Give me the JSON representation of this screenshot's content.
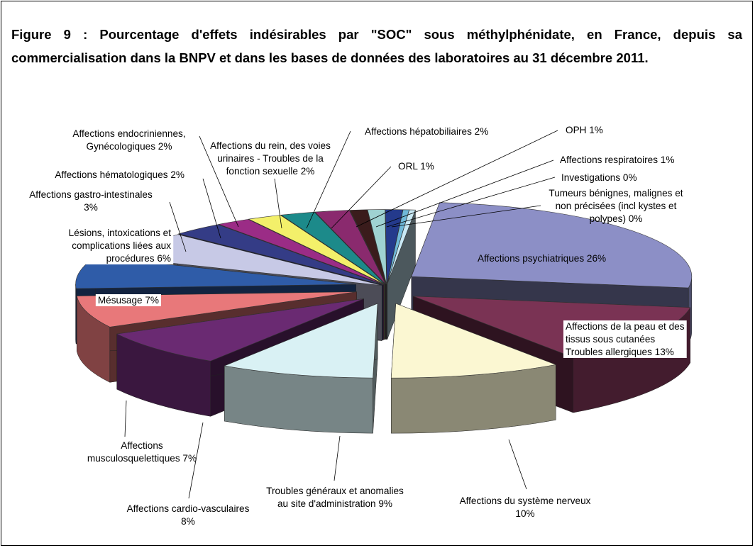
{
  "figure": {
    "title": "Figure 9 : Pourcentage d'effets indésirables par \"SOC\" sous méthylphénidate, en France, depuis sa commercialisation dans la BNPV et dans les bases de données des laboratoires au 31 décembre 2011."
  },
  "chart_data": {
    "type": "pie",
    "style": "3d-exploded",
    "unit": "%",
    "slices": [
      {
        "label": "Affections psychiatriques 26%",
        "category": "Affections psychiatriques",
        "value": 26,
        "color": "#8c8fc6"
      },
      {
        "label": "Affections de la peau et des tissus sous cutanées Troubles allergiques 13%",
        "category": "Affections de la peau et des tissus sous cutanées Troubles allergiques",
        "value": 13,
        "color": "#7a3354"
      },
      {
        "label": "Affections du système nerveux 10%",
        "category": "Affections du système nerveux",
        "value": 10,
        "color": "#fbf7d2"
      },
      {
        "label": "Troubles généraux et anomalies au site d'administration 9%",
        "category": "Troubles généraux et anomalies au site d'administration",
        "value": 9,
        "color": "#d9f1f4"
      },
      {
        "label": "Affections cardio-vasculaires 8%",
        "category": "Affections cardio-vasculaires",
        "value": 8,
        "color": "#6a2a72"
      },
      {
        "label": "Affections musculosquelettiques 7%",
        "category": "Affections musculosquelettiques",
        "value": 7,
        "color": "#e8787a"
      },
      {
        "label": "Mésusage 7%",
        "category": "Mésusage",
        "value": 7,
        "color": "#2f5ca8"
      },
      {
        "label": "Lésions, intoxications et complications liées aux procédures 6%",
        "category": "Lésions, intoxications et complications liées aux procédures",
        "value": 6,
        "color": "#c7c9e6"
      },
      {
        "label": "Affections gastro-intestinales 3%",
        "category": "Affections gastro-intestinales",
        "value": 3,
        "color": "#343c86"
      },
      {
        "label": "Affections hématologiques  2%",
        "category": "Affections hématologiques",
        "value": 2,
        "color": "#9b2c86"
      },
      {
        "label": "Affections endocriniennes, Gynécologiques 2%",
        "category": "Affections endocriniennes, Gynécologiques",
        "value": 2,
        "color": "#f3f06a"
      },
      {
        "label": "Affections du rein, des voies urinaires - Troubles de la fonction sexuelle 2%",
        "category": "Affections du rein, des voies urinaires - Troubles de la fonction sexuelle",
        "value": 2,
        "color": "#1c8a8a"
      },
      {
        "label": "Affections hépatobiliaires 2%",
        "category": "Affections hépatobiliaires",
        "value": 2,
        "color": "#8a2a6e"
      },
      {
        "label": "ORL 1%",
        "category": "ORL",
        "value": 1,
        "color": "#3a1c1c"
      },
      {
        "label": "OPH 1%",
        "category": "OPH",
        "value": 1,
        "color": "#9fd2d2"
      },
      {
        "label": "Affections respiratoires 1%",
        "category": "Affections respiratoires",
        "value": 1,
        "color": "#243a8c"
      },
      {
        "label": "Investigations 0%",
        "category": "Investigations",
        "value": 0,
        "color": "#6fb8d8"
      },
      {
        "label": "Tumeurs bénignes, malignes et non précisées (incl kystes et polypes) 0%",
        "category": "Tumeurs bénignes, malignes et non précisées (incl kystes et polypes)",
        "value": 0,
        "color": "#c8e8f4"
      }
    ]
  }
}
